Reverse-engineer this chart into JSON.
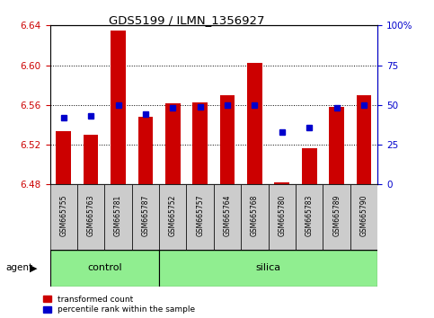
{
  "title": "GDS5199 / ILMN_1356927",
  "samples": [
    "GSM665755",
    "GSM665763",
    "GSM665781",
    "GSM665787",
    "GSM665752",
    "GSM665757",
    "GSM665764",
    "GSM665768",
    "GSM665780",
    "GSM665783",
    "GSM665789",
    "GSM665790"
  ],
  "groups": [
    "control",
    "control",
    "control",
    "control",
    "silica",
    "silica",
    "silica",
    "silica",
    "silica",
    "silica",
    "silica",
    "silica"
  ],
  "transformed_count": [
    6.534,
    6.53,
    6.635,
    6.548,
    6.562,
    6.563,
    6.57,
    6.602,
    6.482,
    6.516,
    6.558,
    6.57
  ],
  "percentile_rank": [
    42,
    43,
    50,
    44,
    48,
    49,
    50,
    50,
    33,
    36,
    48,
    50
  ],
  "ylim_left": [
    6.48,
    6.64
  ],
  "ylim_right": [
    0,
    100
  ],
  "baseline": 6.48,
  "bar_color": "#cc0000",
  "dot_color": "#0000cc",
  "group_color": "#90ee90",
  "left_tick_color": "#cc0000",
  "right_tick_color": "#0000cc",
  "left_ticks": [
    6.48,
    6.52,
    6.56,
    6.6,
    6.64
  ],
  "right_ticks": [
    0,
    25,
    50,
    75,
    100
  ],
  "right_tick_labels": [
    "0",
    "25",
    "50",
    "75",
    "100%"
  ],
  "bar_width": 0.55,
  "agent_label": "agent",
  "control_count": 4,
  "silica_count": 8
}
